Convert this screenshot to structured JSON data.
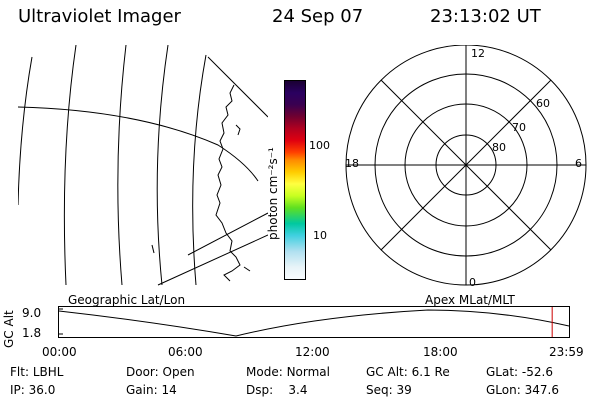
{
  "header": {
    "instrument": "Ultraviolet Imager",
    "date": "24 Sep 07",
    "time": "23:13:02 UT"
  },
  "colorbar": {
    "label": "photon cm⁻²s⁻¹",
    "ticks": [
      "100",
      "10"
    ]
  },
  "polar": {
    "hour_labels": [
      "12",
      "18",
      "6",
      "0"
    ],
    "lat_labels": [
      "60",
      "70",
      "80"
    ]
  },
  "timeline": {
    "ylabel": "GC Alt",
    "ymax": "9.0",
    "ymin": "1.8",
    "left_label": "Geographic Lat/Lon",
    "right_label": "Apex MLat/MLT",
    "time_ticks": [
      "00:00",
      "06:00",
      "12:00",
      "18:00",
      "23:59"
    ],
    "current_time_fraction": 0.967
  },
  "status": {
    "row1": [
      {
        "label": "Flt:",
        "value": "LBHL"
      },
      {
        "label": "Door:",
        "value": "Open"
      },
      {
        "label": "Mode:",
        "value": "Normal"
      },
      {
        "label": "GC Alt:",
        "value": "6.1 Re"
      },
      {
        "label": "GLat:",
        "value": "-52.6"
      }
    ],
    "row2": [
      {
        "label": "IP:",
        "value": "36.0"
      },
      {
        "label": "Gain:",
        "value": "14"
      },
      {
        "label": "Dsp:",
        "value": "3.4"
      },
      {
        "label": "Seq:",
        "value": "39"
      },
      {
        "label": "GLon:",
        "value": "347.6"
      }
    ]
  }
}
